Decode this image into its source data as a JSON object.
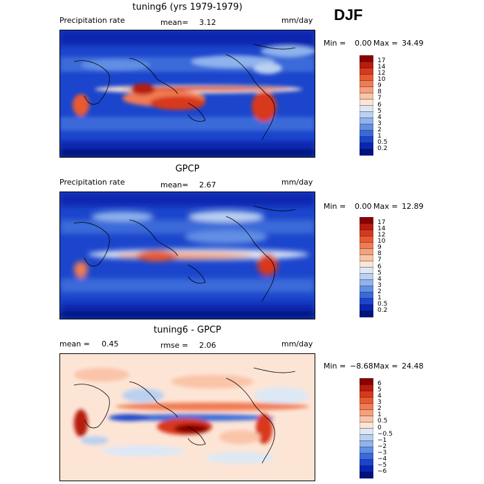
{
  "season": "DJF",
  "panels": [
    {
      "title": "tuning6 (yrs 1979-1979)",
      "left_label": "Precipitation rate",
      "mid_label": "mean=",
      "mid_value": "3.12",
      "units": "mm/day",
      "min_label": "Min =",
      "min_value": "0.00",
      "max_label": "Max =",
      "max_value": "34.49",
      "colorbar_levels": [
        "17",
        "14",
        "12",
        "10",
        "9",
        "8",
        "7",
        "6",
        "5",
        "4",
        "3",
        "2",
        "1",
        "0.5",
        "0.2"
      ],
      "colorbar_colors": [
        "#8b0000",
        "#b81b0f",
        "#d8391c",
        "#e85a33",
        "#f07c53",
        "#f6a07c",
        "#fac4a8",
        "#fde5d6",
        "#dde8f6",
        "#b9d0f1",
        "#8fb3ec",
        "#628fe4",
        "#3a6ad9",
        "#1b45cc",
        "#0a26b0",
        "#00147e"
      ]
    },
    {
      "title": "GPCP",
      "left_label": "Precipitation rate",
      "mid_label": "mean=",
      "mid_value": "2.67",
      "units": "mm/day",
      "min_label": "Min =",
      "min_value": "0.00",
      "max_label": "Max =",
      "max_value": "12.89",
      "colorbar_levels": [
        "17",
        "14",
        "12",
        "10",
        "9",
        "8",
        "7",
        "6",
        "5",
        "4",
        "3",
        "2",
        "1",
        "0.5",
        "0.2"
      ],
      "colorbar_colors": [
        "#8b0000",
        "#b81b0f",
        "#d8391c",
        "#e85a33",
        "#f07c53",
        "#f6a07c",
        "#fac4a8",
        "#fde5d6",
        "#dde8f6",
        "#b9d0f1",
        "#8fb3ec",
        "#628fe4",
        "#3a6ad9",
        "#1b45cc",
        "#0a26b0",
        "#00147e"
      ]
    },
    {
      "title": "tuning6 - GPCP",
      "left_label": "mean =",
      "left_value": "0.45",
      "mid_label": "rmse =",
      "mid_value": "2.06",
      "units": "mm/day",
      "min_label": "Min =",
      "min_value": "−8.68",
      "max_label": "Max =",
      "max_value": "24.48",
      "colorbar_levels": [
        "6",
        "5",
        "4",
        "3",
        "2",
        "1",
        "0.5",
        "0",
        "−0.5",
        "−1",
        "−2",
        "−3",
        "−4",
        "−5",
        "−6"
      ],
      "colorbar_colors": [
        "#8b0000",
        "#b81b0f",
        "#d8391c",
        "#e85a33",
        "#f07c53",
        "#f6a07c",
        "#fac4a8",
        "#fde5d6",
        "#dde8f6",
        "#b9d0f1",
        "#8fb3ec",
        "#628fe4",
        "#3a6ad9",
        "#1b45cc",
        "#0a26b0",
        "#00147e"
      ]
    }
  ],
  "chart_data": [
    {
      "type": "heatmap",
      "title": "tuning6 (yrs 1979-1979)",
      "variable": "Precipitation rate",
      "units": "mm/day",
      "mean": 3.12,
      "min": 0.0,
      "max": 34.49,
      "color_levels": [
        0.2,
        0.5,
        1,
        2,
        3,
        4,
        5,
        6,
        7,
        8,
        9,
        10,
        12,
        14,
        17
      ]
    },
    {
      "type": "heatmap",
      "title": "GPCP",
      "variable": "Precipitation rate",
      "units": "mm/day",
      "mean": 2.67,
      "min": 0.0,
      "max": 12.89,
      "color_levels": [
        0.2,
        0.5,
        1,
        2,
        3,
        4,
        5,
        6,
        7,
        8,
        9,
        10,
        12,
        14,
        17
      ]
    },
    {
      "type": "heatmap",
      "title": "tuning6 - GPCP",
      "units": "mm/day",
      "mean": 0.45,
      "rmse": 2.06,
      "min": -8.68,
      "max": 24.48,
      "color_levels": [
        -6,
        -5,
        -4,
        -3,
        -2,
        -1,
        -0.5,
        0,
        0.5,
        1,
        2,
        3,
        4,
        5,
        6
      ]
    }
  ]
}
